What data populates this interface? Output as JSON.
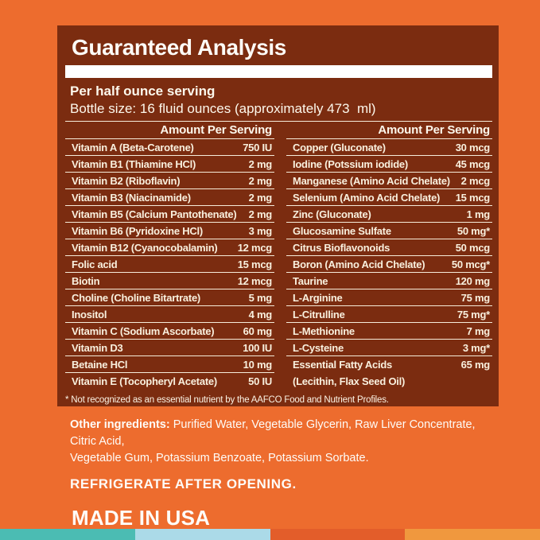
{
  "panel": {
    "title": "Guaranteed Analysis",
    "serving_line": "Per half ounce serving",
    "bottle_line": "Bottle size: 16 fluid ounces (approximately 473  ml)",
    "column_header": "Amount Per Serving",
    "left_rows": [
      {
        "name": "Vitamin A (Beta-Carotene)",
        "value": "750 IU"
      },
      {
        "name": "Vitamin B1 (Thiamine HCl)",
        "value": "2 mg"
      },
      {
        "name": "Vitamin B2 (Riboflavin)",
        "value": "2 mg"
      },
      {
        "name": "Vitamin B3 (Niacinamide)",
        "value": "2 mg"
      },
      {
        "name": "Vitamin B5 (Calcium Pantothenate)",
        "value": "2 mg"
      },
      {
        "name": "Vitamin B6 (Pyridoxine HCl)",
        "value": "3 mg"
      },
      {
        "name": "Vitamin B12 (Cyanocobalamin)",
        "value": "12 mcg"
      },
      {
        "name": "Folic acid",
        "value": "15 mcg"
      },
      {
        "name": "Biotin",
        "value": "12 mcg"
      },
      {
        "name": "Choline (Choline Bitartrate)",
        "value": "5 mg"
      },
      {
        "name": "Inositol",
        "value": "4 mg"
      },
      {
        "name": "Vitamin C (Sodium Ascorbate)",
        "value": "60 mg"
      },
      {
        "name": "Vitamin D3",
        "value": "100 IU"
      },
      {
        "name": "Betaine HCl",
        "value": "10 mg"
      },
      {
        "name": "Vitamin E (Tocopheryl Acetate)",
        "value": "50 IU"
      }
    ],
    "right_rows": [
      {
        "name": "Copper (Gluconate)",
        "value": "30 mcg"
      },
      {
        "name": "Iodine (Potssium iodide)",
        "value": "45 mcg"
      },
      {
        "name": "Manganese (Amino Acid Chelate)",
        "value": "2 mcg"
      },
      {
        "name": "Selenium (Amino Acid Chelate)",
        "value": "15 mcg"
      },
      {
        "name": "Zinc (Gluconate)",
        "value": "1 mg"
      },
      {
        "name": "Glucosamine Sulfate",
        "value": "50 mg*"
      },
      {
        "name": "Citrus Bioflavonoids",
        "value": "50 mcg"
      },
      {
        "name": "Boron (Amino Acid Chelate)",
        "value": "50 mcg*"
      },
      {
        "name": "Taurine",
        "value": "120 mg"
      },
      {
        "name": "L-Arginine",
        "value": "75 mg"
      },
      {
        "name": "L-Citrulline",
        "value": "75 mg*"
      },
      {
        "name": "L-Methionine",
        "value": "7 mg"
      },
      {
        "name": "L-Cysteine",
        "value": "3 mg*"
      },
      {
        "name": "Essential Fatty Acids",
        "name2": "(Lecithin, Flax Seed Oil)",
        "value": "65 mg"
      }
    ],
    "footnote": "* Not recognized as an essential nutrient by the AAFCO Food and Nutrient Profiles."
  },
  "lower": {
    "other_ingredients_label": "Other ingredients:",
    "other_ingredients_line1": "Purified Water, Vegetable Glycerin, Raw Liver Concentrate, Citric Acid,",
    "other_ingredients_line2": "Vegetable Gum, Potassium Benzoate, Potassium Sorbate.",
    "refrigerate": "REFRIGERATE AFTER OPENING.",
    "made_in": "MADE IN USA"
  },
  "colors": {
    "background_orange": "#ED6C2E",
    "panel_brown": "#7B2C10",
    "panel_text_cream": "#F9F0DE",
    "divider_white": "#FFFFFF",
    "strip_teal": "#4BBCB3",
    "strip_lightblue": "#ABDAE8",
    "strip_darkorange": "#E35D2A",
    "strip_lightorange": "#F0983E"
  }
}
